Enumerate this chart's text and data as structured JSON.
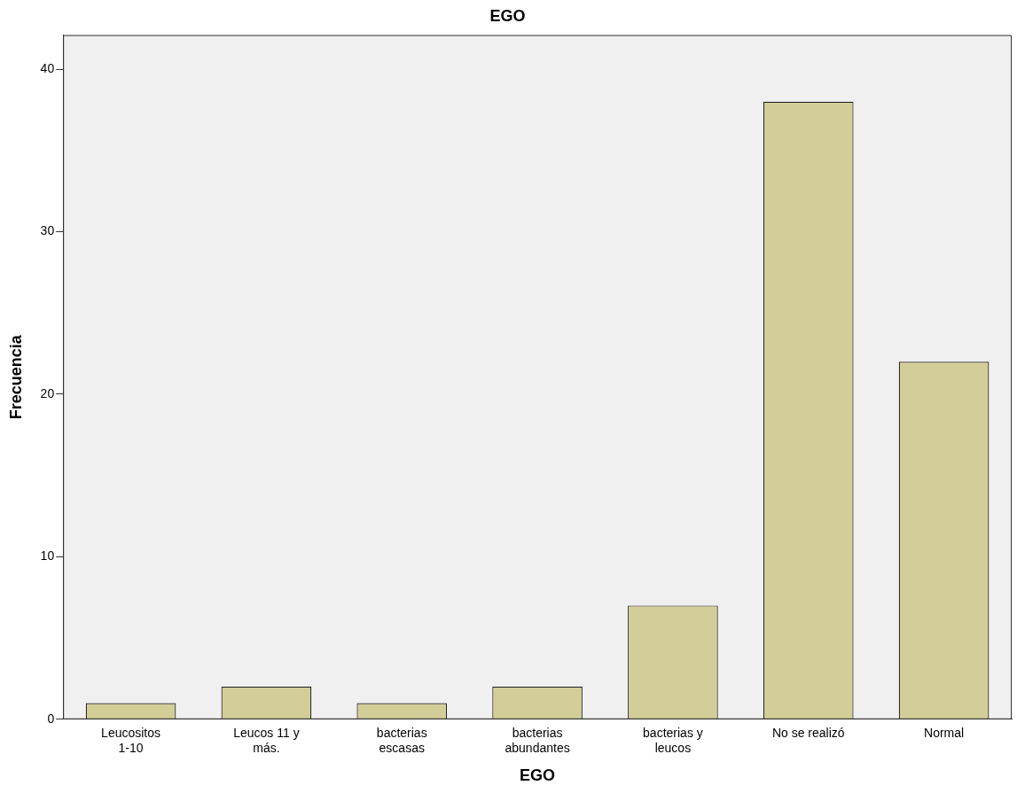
{
  "chart_data": {
    "type": "bar",
    "title": "EGO",
    "xlabel": "EGO",
    "ylabel": "Frecuencia",
    "categories": [
      "Leucositos 1-10",
      "Leucos 11 y más.",
      "bacterias escasas",
      "bacterias abundantes",
      "bacterias y leucos",
      "No se realizó",
      "Normal"
    ],
    "values": [
      1,
      2,
      1,
      2,
      7,
      38,
      22
    ],
    "color": "#d3ce98",
    "ylim": [
      0,
      42.1
    ],
    "yticks": [
      0,
      10,
      20,
      30,
      40
    ],
    "grid": false,
    "legend": false
  }
}
